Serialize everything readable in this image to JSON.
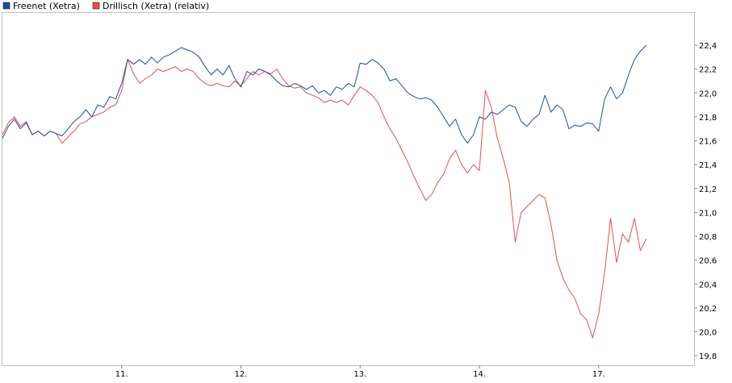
{
  "chart_data": {
    "type": "line",
    "title": "",
    "xlabel": "",
    "ylabel": "",
    "x_tick_labels": [
      "11.",
      "12.",
      "13.",
      "14.",
      "17."
    ],
    "y_ticks": [
      "22,4",
      "22,2",
      "22,0",
      "21,8",
      "21,6",
      "21,4",
      "21,2",
      "21,0",
      "20,8",
      "20,6",
      "20,4",
      "20,2",
      "20,0",
      "19,8"
    ],
    "ylim": [
      19.72,
      22.67
    ],
    "xlim": [
      0,
      5.8
    ],
    "grid": false,
    "legend_position": "top-left",
    "series": [
      {
        "name": "Freenet (Xetra)",
        "color": "#1d4f9c",
        "points": [
          [
            0.0,
            21.62
          ],
          [
            0.05,
            21.72
          ],
          [
            0.1,
            21.78
          ],
          [
            0.15,
            21.7
          ],
          [
            0.2,
            21.75
          ],
          [
            0.25,
            21.65
          ],
          [
            0.3,
            21.68
          ],
          [
            0.35,
            21.64
          ],
          [
            0.4,
            21.68
          ],
          [
            0.45,
            21.66
          ],
          [
            0.5,
            21.64
          ],
          [
            0.55,
            21.7
          ],
          [
            0.6,
            21.76
          ],
          [
            0.65,
            21.8
          ],
          [
            0.7,
            21.86
          ],
          [
            0.75,
            21.8
          ],
          [
            0.8,
            21.9
          ],
          [
            0.85,
            21.88
          ],
          [
            0.9,
            21.97
          ],
          [
            0.95,
            21.95
          ],
          [
            1.0,
            22.08
          ],
          [
            1.05,
            22.28
          ],
          [
            1.1,
            22.24
          ],
          [
            1.15,
            22.28
          ],
          [
            1.2,
            22.24
          ],
          [
            1.25,
            22.3
          ],
          [
            1.3,
            22.25
          ],
          [
            1.35,
            22.3
          ],
          [
            1.4,
            22.32
          ],
          [
            1.45,
            22.35
          ],
          [
            1.5,
            22.38
          ],
          [
            1.55,
            22.36
          ],
          [
            1.6,
            22.34
          ],
          [
            1.65,
            22.3
          ],
          [
            1.7,
            22.22
          ],
          [
            1.75,
            22.15
          ],
          [
            1.8,
            22.2
          ],
          [
            1.85,
            22.15
          ],
          [
            1.9,
            22.23
          ],
          [
            1.95,
            22.12
          ],
          [
            2.0,
            22.05
          ],
          [
            2.05,
            22.18
          ],
          [
            2.1,
            22.15
          ],
          [
            2.15,
            22.2
          ],
          [
            2.2,
            22.18
          ],
          [
            2.25,
            22.15
          ],
          [
            2.3,
            22.1
          ],
          [
            2.35,
            22.06
          ],
          [
            2.4,
            22.05
          ],
          [
            2.45,
            22.08
          ],
          [
            2.5,
            22.06
          ],
          [
            2.55,
            22.03
          ],
          [
            2.6,
            22.06
          ],
          [
            2.65,
            22.0
          ],
          [
            2.7,
            22.02
          ],
          [
            2.75,
            21.98
          ],
          [
            2.8,
            22.05
          ],
          [
            2.85,
            22.03
          ],
          [
            2.9,
            22.08
          ],
          [
            2.95,
            22.05
          ],
          [
            3.0,
            22.25
          ],
          [
            3.05,
            22.24
          ],
          [
            3.1,
            22.28
          ],
          [
            3.15,
            22.25
          ],
          [
            3.2,
            22.2
          ],
          [
            3.25,
            22.1
          ],
          [
            3.3,
            22.12
          ],
          [
            3.35,
            22.06
          ],
          [
            3.4,
            22.0
          ],
          [
            3.45,
            21.97
          ],
          [
            3.5,
            21.95
          ],
          [
            3.55,
            21.96
          ],
          [
            3.6,
            21.94
          ],
          [
            3.65,
            21.88
          ],
          [
            3.7,
            21.8
          ],
          [
            3.75,
            21.72
          ],
          [
            3.8,
            21.78
          ],
          [
            3.85,
            21.65
          ],
          [
            3.9,
            21.58
          ],
          [
            3.95,
            21.65
          ],
          [
            4.0,
            21.8
          ],
          [
            4.05,
            21.78
          ],
          [
            4.1,
            21.84
          ],
          [
            4.15,
            21.82
          ],
          [
            4.2,
            21.86
          ],
          [
            4.25,
            21.9
          ],
          [
            4.3,
            21.88
          ],
          [
            4.35,
            21.76
          ],
          [
            4.4,
            21.72
          ],
          [
            4.45,
            21.78
          ],
          [
            4.5,
            21.82
          ],
          [
            4.55,
            21.98
          ],
          [
            4.6,
            21.84
          ],
          [
            4.65,
            21.9
          ],
          [
            4.7,
            21.86
          ],
          [
            4.75,
            21.7
          ],
          [
            4.8,
            21.73
          ],
          [
            4.85,
            21.72
          ],
          [
            4.9,
            21.75
          ],
          [
            4.95,
            21.74
          ],
          [
            5.0,
            21.68
          ],
          [
            5.05,
            21.95
          ],
          [
            5.1,
            22.05
          ],
          [
            5.15,
            21.95
          ],
          [
            5.2,
            22.0
          ],
          [
            5.25,
            22.15
          ],
          [
            5.3,
            22.28
          ],
          [
            5.35,
            22.35
          ],
          [
            5.4,
            22.4
          ]
        ]
      },
      {
        "name": "Drillisch (Xetra) (relativ)",
        "color": "#e05050",
        "points": [
          [
            0.0,
            21.65
          ],
          [
            0.05,
            21.75
          ],
          [
            0.1,
            21.8
          ],
          [
            0.15,
            21.72
          ],
          [
            0.2,
            21.76
          ],
          [
            0.25,
            21.65
          ],
          [
            0.3,
            21.68
          ],
          [
            0.35,
            21.64
          ],
          [
            0.4,
            21.68
          ],
          [
            0.45,
            21.66
          ],
          [
            0.5,
            21.58
          ],
          [
            0.55,
            21.63
          ],
          [
            0.6,
            21.68
          ],
          [
            0.65,
            21.74
          ],
          [
            0.7,
            21.76
          ],
          [
            0.75,
            21.8
          ],
          [
            0.8,
            21.82
          ],
          [
            0.85,
            21.84
          ],
          [
            0.9,
            21.88
          ],
          [
            0.95,
            21.9
          ],
          [
            1.0,
            22.02
          ],
          [
            1.05,
            22.28
          ],
          [
            1.1,
            22.16
          ],
          [
            1.15,
            22.08
          ],
          [
            1.2,
            22.12
          ],
          [
            1.25,
            22.15
          ],
          [
            1.3,
            22.2
          ],
          [
            1.35,
            22.18
          ],
          [
            1.4,
            22.2
          ],
          [
            1.45,
            22.22
          ],
          [
            1.5,
            22.18
          ],
          [
            1.55,
            22.2
          ],
          [
            1.6,
            22.18
          ],
          [
            1.65,
            22.12
          ],
          [
            1.7,
            22.08
          ],
          [
            1.75,
            22.06
          ],
          [
            1.8,
            22.08
          ],
          [
            1.85,
            22.06
          ],
          [
            1.9,
            22.05
          ],
          [
            1.95,
            22.1
          ],
          [
            2.0,
            22.06
          ],
          [
            2.05,
            22.12
          ],
          [
            2.1,
            22.18
          ],
          [
            2.15,
            22.15
          ],
          [
            2.2,
            22.18
          ],
          [
            2.25,
            22.16
          ],
          [
            2.3,
            22.2
          ],
          [
            2.35,
            22.12
          ],
          [
            2.4,
            22.06
          ],
          [
            2.45,
            22.04
          ],
          [
            2.5,
            22.05
          ],
          [
            2.55,
            22.0
          ],
          [
            2.6,
            21.98
          ],
          [
            2.65,
            21.96
          ],
          [
            2.7,
            21.92
          ],
          [
            2.75,
            21.94
          ],
          [
            2.8,
            21.92
          ],
          [
            2.85,
            21.94
          ],
          [
            2.9,
            21.9
          ],
          [
            2.95,
            21.98
          ],
          [
            3.0,
            22.05
          ],
          [
            3.05,
            22.02
          ],
          [
            3.1,
            21.98
          ],
          [
            3.15,
            21.92
          ],
          [
            3.2,
            21.8
          ],
          [
            3.25,
            21.7
          ],
          [
            3.3,
            21.62
          ],
          [
            3.35,
            21.52
          ],
          [
            3.4,
            21.42
          ],
          [
            3.45,
            21.3
          ],
          [
            3.5,
            21.2
          ],
          [
            3.55,
            21.1
          ],
          [
            3.6,
            21.15
          ],
          [
            3.65,
            21.25
          ],
          [
            3.7,
            21.32
          ],
          [
            3.75,
            21.45
          ],
          [
            3.8,
            21.52
          ],
          [
            3.85,
            21.4
          ],
          [
            3.9,
            21.33
          ],
          [
            3.95,
            21.4
          ],
          [
            4.0,
            21.35
          ],
          [
            4.05,
            22.02
          ],
          [
            4.1,
            21.88
          ],
          [
            4.15,
            21.62
          ],
          [
            4.2,
            21.45
          ],
          [
            4.25,
            21.25
          ],
          [
            4.3,
            20.75
          ],
          [
            4.35,
            21.0
          ],
          [
            4.4,
            21.05
          ],
          [
            4.45,
            21.1
          ],
          [
            4.5,
            21.15
          ],
          [
            4.55,
            21.12
          ],
          [
            4.6,
            20.9
          ],
          [
            4.65,
            20.6
          ],
          [
            4.7,
            20.45
          ],
          [
            4.75,
            20.35
          ],
          [
            4.8,
            20.28
          ],
          [
            4.85,
            20.15
          ],
          [
            4.9,
            20.1
          ],
          [
            4.95,
            19.95
          ],
          [
            5.0,
            20.15
          ],
          [
            5.05,
            20.5
          ],
          [
            5.1,
            20.95
          ],
          [
            5.15,
            20.58
          ],
          [
            5.2,
            20.82
          ],
          [
            5.25,
            20.75
          ],
          [
            5.3,
            20.95
          ],
          [
            5.35,
            20.68
          ],
          [
            5.4,
            20.78
          ]
        ]
      }
    ]
  }
}
